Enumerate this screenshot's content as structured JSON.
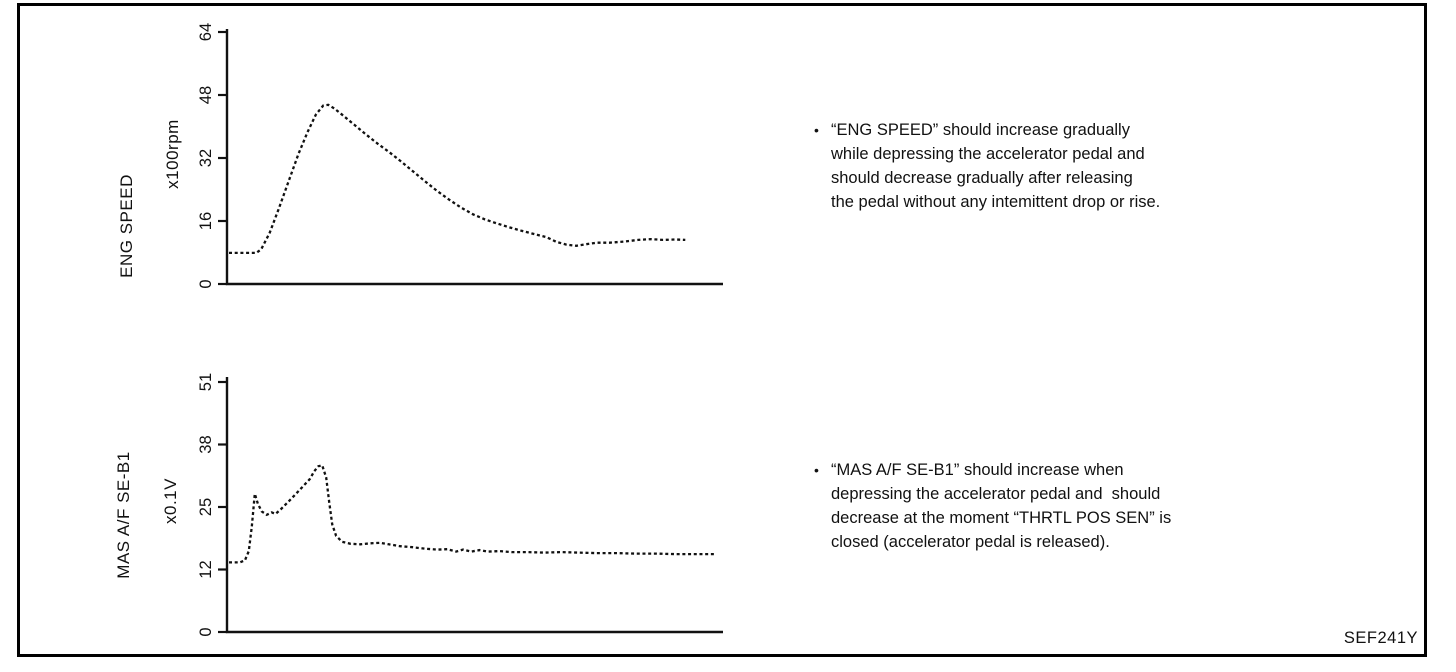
{
  "figure_code": "SEF241Y",
  "colors": {
    "ink": "#111111",
    "background": "#ffffff"
  },
  "chart_data": [
    {
      "type": "line",
      "title": "ENG SPEED",
      "ylabel": "x100rpm",
      "xlabel": "",
      "line_style": "dotted",
      "grid": false,
      "legend": "none",
      "y_tick_labels": [
        "0",
        "16",
        "32",
        "48",
        "64"
      ],
      "ylim": [
        0,
        64
      ],
      "points": [
        [
          0.0,
          7.9
        ],
        [
          0.055,
          7.9
        ],
        [
          0.065,
          8.8
        ],
        [
          0.082,
          13
        ],
        [
          0.1,
          19
        ],
        [
          0.12,
          26
        ],
        [
          0.14,
          33
        ],
        [
          0.158,
          38.5
        ],
        [
          0.175,
          43
        ],
        [
          0.19,
          45.3
        ],
        [
          0.2,
          45.5
        ],
        [
          0.212,
          44.6
        ],
        [
          0.228,
          43
        ],
        [
          0.252,
          40.5
        ],
        [
          0.276,
          38
        ],
        [
          0.3,
          35.6
        ],
        [
          0.324,
          33.4
        ],
        [
          0.348,
          31
        ],
        [
          0.372,
          28.5
        ],
        [
          0.396,
          26
        ],
        [
          0.42,
          23.6
        ],
        [
          0.444,
          21.4
        ],
        [
          0.468,
          19.4
        ],
        [
          0.492,
          17.7
        ],
        [
          0.516,
          16.4
        ],
        [
          0.54,
          15.4
        ],
        [
          0.565,
          14.4
        ],
        [
          0.59,
          13.5
        ],
        [
          0.615,
          12.7
        ],
        [
          0.64,
          11.9
        ],
        [
          0.66,
          10.7
        ],
        [
          0.68,
          10.0
        ],
        [
          0.7,
          9.7
        ],
        [
          0.72,
          10.1
        ],
        [
          0.742,
          10.5
        ],
        [
          0.768,
          10.5
        ],
        [
          0.798,
          10.8
        ],
        [
          0.825,
          11.2
        ],
        [
          0.85,
          11.4
        ],
        [
          0.875,
          11.2
        ],
        [
          0.9,
          11.3
        ],
        [
          0.92,
          11.2
        ]
      ]
    },
    {
      "type": "line",
      "title": "MAS A/F SE-B1",
      "ylabel": "x0.1V",
      "xlabel": "",
      "line_style": "dotted",
      "grid": false,
      "legend": "none",
      "y_tick_labels": [
        "0",
        "12",
        "25",
        "38",
        "51"
      ],
      "ylim": [
        0,
        51
      ],
      "points": [
        [
          0.0,
          14.2
        ],
        [
          0.022,
          14.2
        ],
        [
          0.032,
          14.6
        ],
        [
          0.04,
          16.5
        ],
        [
          0.046,
          21.5
        ],
        [
          0.052,
          28.2
        ],
        [
          0.058,
          26.2
        ],
        [
          0.066,
          24.6
        ],
        [
          0.076,
          23.9
        ],
        [
          0.086,
          24.4
        ],
        [
          0.094,
          24.1
        ],
        [
          0.105,
          25.1
        ],
        [
          0.12,
          26.6
        ],
        [
          0.135,
          28.2
        ],
        [
          0.15,
          29.8
        ],
        [
          0.163,
          31.2
        ],
        [
          0.172,
          32.8
        ],
        [
          0.18,
          33.8
        ],
        [
          0.188,
          34.0
        ],
        [
          0.196,
          31.5
        ],
        [
          0.202,
          26.5
        ],
        [
          0.208,
          22.0
        ],
        [
          0.216,
          19.6
        ],
        [
          0.228,
          18.4
        ],
        [
          0.245,
          18.0
        ],
        [
          0.265,
          17.9
        ],
        [
          0.285,
          18.1
        ],
        [
          0.305,
          18.2
        ],
        [
          0.322,
          17.9
        ],
        [
          0.345,
          17.5
        ],
        [
          0.37,
          17.3
        ],
        [
          0.395,
          17.0
        ],
        [
          0.42,
          16.8
        ],
        [
          0.44,
          16.9
        ],
        [
          0.458,
          16.4
        ],
        [
          0.472,
          16.8
        ],
        [
          0.488,
          16.4
        ],
        [
          0.505,
          16.7
        ],
        [
          0.522,
          16.4
        ],
        [
          0.545,
          16.5
        ],
        [
          0.57,
          16.3
        ],
        [
          0.6,
          16.3
        ],
        [
          0.635,
          16.2
        ],
        [
          0.67,
          16.3
        ],
        [
          0.705,
          16.2
        ],
        [
          0.74,
          16.1
        ],
        [
          0.78,
          16.1
        ],
        [
          0.82,
          16.0
        ],
        [
          0.86,
          16.0
        ],
        [
          0.9,
          15.9
        ],
        [
          0.94,
          15.9
        ],
        [
          0.978,
          15.9
        ]
      ]
    }
  ],
  "notes": [
    {
      "bullet": "•",
      "lines": [
        "“ENG SPEED” should increase gradually",
        "while depressing the accelerator pedal and",
        "should decrease gradually after releasing",
        "the pedal without any intemittent drop or rise."
      ]
    },
    {
      "bullet": "•",
      "lines": [
        "“MAS A/F SE-B1” should increase when",
        "depressing the accelerator pedal and  should",
        "decrease at the moment “THRTL POS SEN” is",
        "closed (accelerator pedal is released)."
      ]
    }
  ]
}
